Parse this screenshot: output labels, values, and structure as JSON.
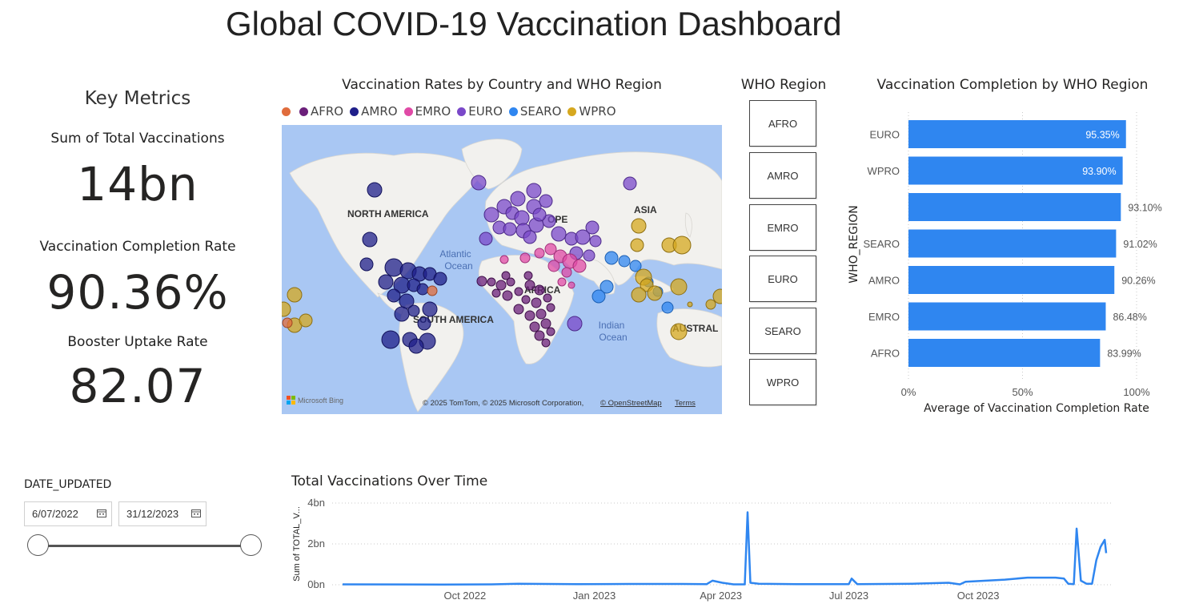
{
  "title": "Global COVID-19 Vaccination Dashboard",
  "key_metrics": {
    "heading": "Key Metrics",
    "cards": [
      {
        "label": "Sum of Total Vaccinations",
        "value": "14bn"
      },
      {
        "label": "Vaccination Completion Rate",
        "value": "90.36%"
      },
      {
        "label": "Booster Uptake Rate",
        "value": "82.07"
      }
    ]
  },
  "map": {
    "title": "Vaccination Rates by Country and WHO Region",
    "legend": [
      {
        "label": "",
        "color": "#e06c3c"
      },
      {
        "label": "AFRO",
        "color": "#6b1f7a"
      },
      {
        "label": "AMRO",
        "color": "#1f1f8a"
      },
      {
        "label": "EMRO",
        "color": "#e04aa6"
      },
      {
        "label": "EURO",
        "color": "#7a48c9"
      },
      {
        "label": "SEARO",
        "color": "#2f86f0"
      },
      {
        "label": "WPRO",
        "color": "#d6a81f"
      }
    ],
    "labels": {
      "north_america": "NORTH AMERICA",
      "south_america": "SOUTH AMERICA",
      "europe": "OPE",
      "asia": "ASIA",
      "africa": "AFRICA",
      "australia": "AUSTRAL",
      "atlantic": "Atlantic",
      "atlantic2": "Ocean",
      "indian": "Indian",
      "indian2": "Ocean"
    },
    "bing": "Microsoft Bing",
    "attribution": "© 2025 TomTom, © 2025 Microsoft Corporation,",
    "osm_link": "© OpenStreetMap",
    "terms_link": "Terms"
  },
  "slicer": {
    "title": "WHO Region",
    "options": [
      "AFRO",
      "AMRO",
      "EMRO",
      "EURO",
      "SEARO",
      "WPRO"
    ]
  },
  "date_slicer": {
    "label": "DATE_UPDATED",
    "start": "6/07/2022",
    "end": "31/12/2023"
  },
  "colors": {
    "accent": "#2f86f0",
    "bar": "#2f86f0"
  },
  "chart_data": [
    {
      "type": "bar",
      "title": "Vaccination Completion by WHO Region",
      "ylabel": "WHO_REGION",
      "xlabel": "Average of Vaccination Completion Rate",
      "categories": [
        "EURO",
        "WPRO",
        "",
        "SEARO",
        "AMRO",
        "EMRO",
        "AFRO"
      ],
      "values": [
        95.35,
        93.9,
        93.1,
        91.02,
        90.26,
        86.48,
        83.99
      ],
      "value_labels": [
        "95.35%",
        "93.90%",
        "93.10%",
        "91.02%",
        "90.26%",
        "86.48%",
        "83.99%"
      ],
      "xticks": [
        "0%",
        "50%",
        "100%"
      ],
      "xlim": [
        0,
        100
      ]
    },
    {
      "type": "line",
      "title": "Total Vaccinations Over Time",
      "ylabel": "Sum of TOTAL_V...",
      "yticks": [
        "4bn",
        "2bn",
        "0bn"
      ],
      "ylim": [
        0,
        4
      ],
      "xticks": [
        "Oct 2022",
        "Jan 2023",
        "Apr 2023",
        "Jul 2023",
        "Oct 2023"
      ],
      "xlim": [
        "2022-07-06",
        "2023-12-31"
      ],
      "series": [
        {
          "points": [
            [
              "2022-07-06",
              0.02
            ],
            [
              "2022-09-15",
              0.01
            ],
            [
              "2022-10-20",
              0.02
            ],
            [
              "2022-11-08",
              0.05
            ],
            [
              "2022-12-20",
              0.03
            ],
            [
              "2023-01-25",
              0.04
            ],
            [
              "2023-03-05",
              0.04
            ],
            [
              "2023-03-22",
              0.03
            ],
            [
              "2023-03-26",
              0.2
            ],
            [
              "2023-04-02",
              0.1
            ],
            [
              "2023-04-10",
              0.02
            ],
            [
              "2023-04-18",
              0.02
            ],
            [
              "2023-04-20",
              3.55
            ],
            [
              "2023-04-22",
              0.1
            ],
            [
              "2023-04-28",
              0.05
            ],
            [
              "2023-05-25",
              0.03
            ],
            [
              "2023-07-01",
              0.03
            ],
            [
              "2023-07-03",
              0.3
            ],
            [
              "2023-07-07",
              0.03
            ],
            [
              "2023-08-15",
              0.05
            ],
            [
              "2023-09-10",
              0.1
            ],
            [
              "2023-09-18",
              0.02
            ],
            [
              "2023-09-22",
              0.15
            ],
            [
              "2023-10-20",
              0.25
            ],
            [
              "2023-11-05",
              0.35
            ],
            [
              "2023-11-25",
              0.35
            ],
            [
              "2023-12-01",
              0.3
            ],
            [
              "2023-12-04",
              0.05
            ],
            [
              "2023-12-08",
              0.03
            ],
            [
              "2023-12-10",
              2.75
            ],
            [
              "2023-12-13",
              0.2
            ],
            [
              "2023-12-17",
              0.05
            ],
            [
              "2023-12-21",
              0.05
            ],
            [
              "2023-12-24",
              1.2
            ],
            [
              "2023-12-27",
              1.85
            ],
            [
              "2023-12-30",
              2.2
            ],
            [
              "2023-12-31",
              1.55
            ]
          ]
        }
      ]
    }
  ]
}
